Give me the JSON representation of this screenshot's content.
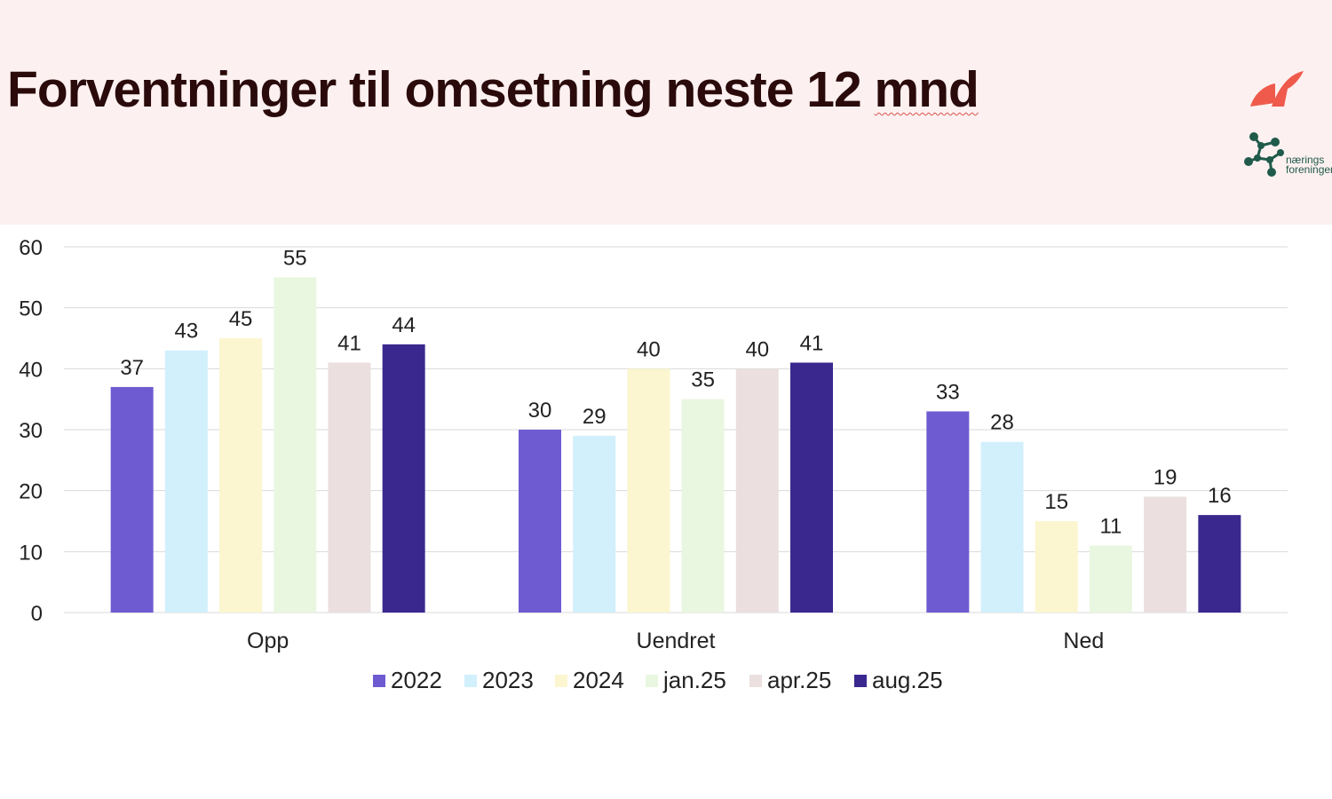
{
  "header": {
    "title_main": "Forventninger til omsetning neste 12",
    "title_last": "mnd",
    "logo_text_line1": "nærings",
    "logo_text_line2": "foreningen"
  },
  "colors": {
    "header_bg": "#fdf0f0",
    "title": "#2a0a0a",
    "brand_red": "#ef5a4c",
    "assoc_green": "#1f5a4a"
  },
  "icons": [
    "brand-logo-icon",
    "association-logo-icon"
  ],
  "chart_data": {
    "type": "bar",
    "categories": [
      "Opp",
      "Uendret",
      "Ned"
    ],
    "series": [
      {
        "name": "2022",
        "color": "#6e5bd1",
        "values": [
          37,
          30,
          33
        ]
      },
      {
        "name": "2023",
        "color": "#d2f0fc",
        "values": [
          43,
          29,
          28
        ]
      },
      {
        "name": "2024",
        "color": "#fbf6d0",
        "values": [
          45,
          40,
          15
        ]
      },
      {
        "name": "jan.25",
        "color": "#e9f7e0",
        "values": [
          55,
          35,
          11
        ]
      },
      {
        "name": "apr.25",
        "color": "#ebdfdf",
        "values": [
          41,
          40,
          19
        ]
      },
      {
        "name": "aug.25",
        "color": "#3a288f",
        "values": [
          44,
          41,
          16
        ]
      }
    ],
    "displayed_values": [
      [
        "37",
        "30",
        "33"
      ],
      [
        "43",
        "29",
        "28"
      ],
      [
        "45",
        "40",
        "15"
      ],
      [
        "55",
        "35",
        "11"
      ],
      [
        "41",
        "40",
        "19"
      ],
      [
        "44",
        "41",
        "16"
      ]
    ],
    "yticks": [
      "0",
      "10",
      "20",
      "30",
      "40",
      "50",
      "60"
    ],
    "ylim": [
      0,
      60
    ],
    "grid": true,
    "legend_position": "bottom"
  }
}
